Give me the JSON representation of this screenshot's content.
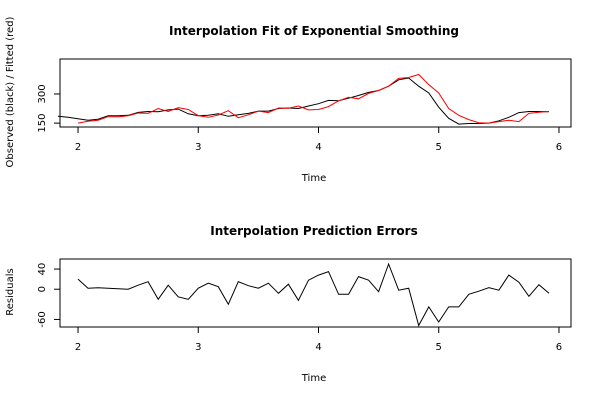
{
  "chart_data": [
    {
      "type": "line",
      "title": "Interpolation Fit of Exponential Smoothing",
      "xlabel": "Time",
      "ylabel": "Observed (black) / Fitted (red)",
      "xlim": [
        1.85,
        6.1
      ],
      "ylim": [
        130,
        480
      ],
      "xticks": [
        2,
        3,
        4,
        5,
        6
      ],
      "yticks": [
        150,
        300
      ],
      "ytick_labels": [
        "150",
        "300"
      ],
      "colors": {
        "observed": "#000000",
        "fitted": "#ff0000"
      },
      "series": [
        {
          "name": "Observed",
          "color": "#000000",
          "x": [
            1.833,
            1.917,
            2.0,
            2.083,
            2.167,
            2.25,
            2.333,
            2.417,
            2.5,
            2.583,
            2.667,
            2.75,
            2.833,
            2.917,
            3.0,
            3.083,
            3.167,
            3.25,
            3.333,
            3.417,
            3.5,
            3.583,
            3.667,
            3.75,
            3.833,
            3.917,
            4.0,
            4.083,
            4.167,
            4.25,
            4.333,
            4.417,
            4.5,
            4.583,
            4.667,
            4.75,
            4.833,
            4.917,
            5.0,
            5.083,
            5.167,
            5.25,
            5.333,
            5.417,
            5.5,
            5.583,
            5.667,
            5.75,
            5.833,
            5.917
          ],
          "y": [
            185,
            180,
            172,
            165,
            170,
            188,
            188,
            190,
            205,
            210,
            208,
            218,
            222,
            198,
            188,
            190,
            198,
            185,
            193,
            200,
            212,
            212,
            225,
            228,
            225,
            238,
            250,
            267,
            265,
            278,
            292,
            308,
            318,
            340,
            373,
            382,
            340,
            305,
            232,
            175,
            145,
            148,
            148,
            150,
            162,
            180,
            204,
            210,
            210,
            208
          ]
        },
        {
          "name": "Fitted",
          "color": "#ff0000",
          "x": [
            2.0,
            2.083,
            2.167,
            2.25,
            2.333,
            2.417,
            2.5,
            2.583,
            2.667,
            2.75,
            2.833,
            2.917,
            3.0,
            3.083,
            3.167,
            3.25,
            3.333,
            3.417,
            3.5,
            3.583,
            3.667,
            3.75,
            3.833,
            3.917,
            4.0,
            4.083,
            4.167,
            4.25,
            4.333,
            4.417,
            4.5,
            4.583,
            4.667,
            4.75,
            4.833,
            4.917,
            5.0,
            5.083,
            5.167,
            5.25,
            5.333,
            5.417,
            5.5,
            5.583,
            5.667,
            5.75,
            5.833,
            5.917
          ],
          "y": [
            150,
            160,
            165,
            183,
            182,
            188,
            202,
            200,
            225,
            210,
            230,
            220,
            188,
            180,
            192,
            214,
            178,
            193,
            212,
            204,
            228,
            227,
            238,
            218,
            220,
            235,
            265,
            283,
            275,
            303,
            318,
            340,
            380,
            385,
            400,
            348,
            305,
            225,
            190,
            168,
            152,
            150,
            158,
            165,
            158,
            200,
            206,
            210
          ]
        }
      ]
    },
    {
      "type": "line",
      "title": "Interpolation Prediction Errors",
      "xlabel": "Time",
      "ylabel": "Residuals",
      "xlim": [
        1.85,
        6.1
      ],
      "ylim": [
        -75,
        60
      ],
      "xticks": [
        2,
        3,
        4,
        5,
        6
      ],
      "yticks": [
        -60,
        0,
        40
      ],
      "ytick_labels": [
        "-60",
        "0",
        "40"
      ],
      "series": [
        {
          "name": "Residuals",
          "color": "#000000",
          "x": [
            2.0,
            2.083,
            2.167,
            2.25,
            2.333,
            2.417,
            2.5,
            2.583,
            2.667,
            2.75,
            2.833,
            2.917,
            3.0,
            3.083,
            3.167,
            3.25,
            3.333,
            3.417,
            3.5,
            3.583,
            3.667,
            3.75,
            3.833,
            3.917,
            4.0,
            4.083,
            4.167,
            4.25,
            4.333,
            4.417,
            4.5,
            4.583,
            4.667,
            4.75,
            4.833,
            4.917,
            5.0,
            5.083,
            5.167,
            5.25,
            5.333,
            5.417,
            5.5,
            5.583,
            5.667,
            5.75,
            5.833,
            5.917
          ],
          "y": [
            20,
            2,
            3,
            2,
            1,
            0,
            8,
            15,
            -20,
            8,
            -15,
            -20,
            2,
            12,
            5,
            -30,
            15,
            7,
            2,
            12,
            -8,
            10,
            -22,
            18,
            28,
            35,
            -10,
            -10,
            25,
            18,
            -5,
            50,
            -2,
            2,
            -72,
            -35,
            -65,
            -35,
            -35,
            -10,
            -4,
            3,
            -2,
            28,
            14,
            -14,
            9,
            -8
          ]
        }
      ]
    }
  ]
}
